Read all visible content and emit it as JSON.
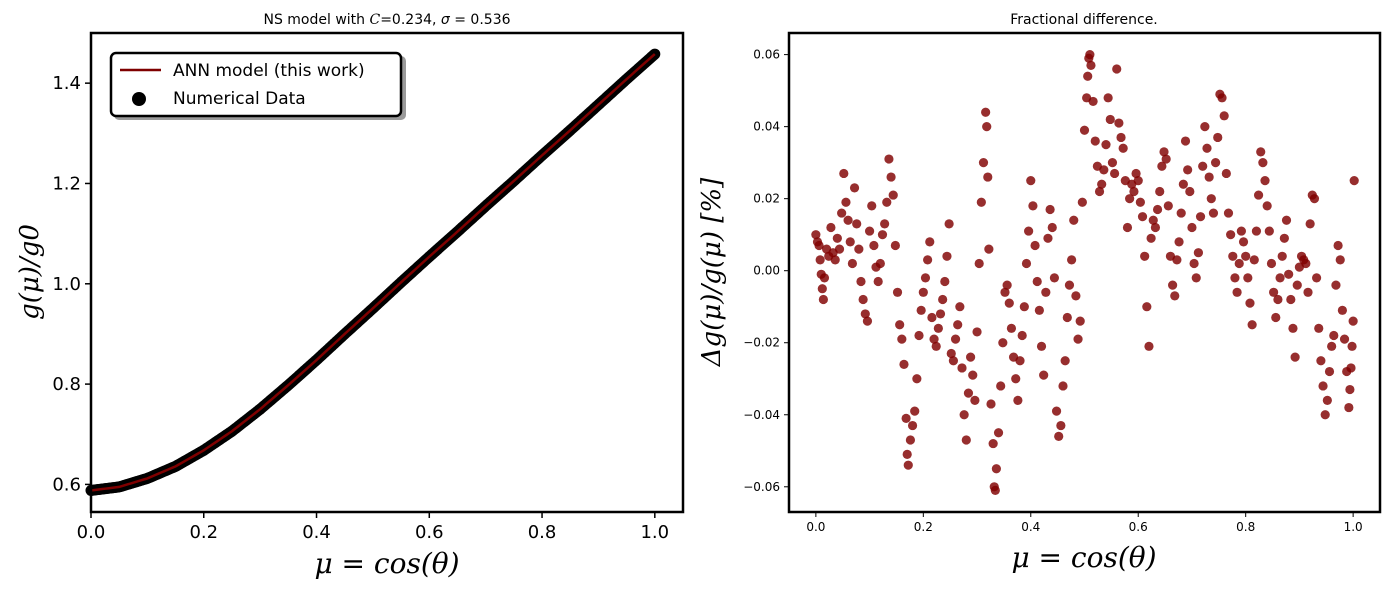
{
  "figure": {
    "background": "#ffffff"
  },
  "chart_data": [
    {
      "type": "line",
      "title": "NS model with C=0.234, σ = 0.536",
      "title_parts": {
        "prefix": "NS model with ",
        "c_symbol": "C",
        "c_value": "=0.234, ",
        "sigma_symbol": "σ",
        "sigma_value": " = 0.536"
      },
      "xlabel": "μ = cos(θ)",
      "ylabel": "g(μ)/g0",
      "xlim": [
        0.0,
        1.05
      ],
      "ylim": [
        0.545,
        1.5
      ],
      "xticks": [
        0.0,
        0.2,
        0.4,
        0.6,
        0.8,
        1.0
      ],
      "xtick_labels": [
        "0.0",
        "0.2",
        "0.4",
        "0.6",
        "0.8",
        "1.0"
      ],
      "yticks": [
        0.6,
        0.8,
        1.0,
        1.2,
        1.4
      ],
      "ytick_labels": [
        "0.6",
        "0.8",
        "1.0",
        "1.2",
        "1.4"
      ],
      "grid": false,
      "legend_position": "top-left",
      "series": [
        {
          "name": "ANN model (this work)",
          "kind": "line",
          "color": "#7f0000"
        },
        {
          "name": "Numerical Data",
          "kind": "scatter",
          "color": "#000000"
        }
      ],
      "curve": {
        "x": [
          0.0,
          0.05,
          0.1,
          0.15,
          0.2,
          0.25,
          0.3,
          0.35,
          0.4,
          0.45,
          0.5,
          0.55,
          0.6,
          0.65,
          0.7,
          0.75,
          0.8,
          0.85,
          0.9,
          0.95,
          1.0
        ],
        "y": [
          0.588,
          0.595,
          0.612,
          0.636,
          0.668,
          0.706,
          0.75,
          0.798,
          0.848,
          0.9,
          0.951,
          1.003,
          1.054,
          1.104,
          1.155,
          1.205,
          1.256,
          1.306,
          1.357,
          1.408,
          1.458
        ]
      }
    },
    {
      "type": "scatter",
      "title": "Fractional difference.",
      "xlabel": "μ = cos(θ)",
      "ylabel": "Δg(μ)/g(μ) [%]",
      "xlim": [
        -0.05,
        1.05
      ],
      "ylim": [
        -0.067,
        0.066
      ],
      "xticks": [
        0.0,
        0.2,
        0.4,
        0.6,
        0.8,
        1.0
      ],
      "xtick_labels": [
        "0.0",
        "0.2",
        "0.4",
        "0.6",
        "0.8",
        "1.0"
      ],
      "yticks": [
        -0.06,
        -0.04,
        -0.02,
        0.0,
        0.02,
        0.04,
        0.06
      ],
      "ytick_labels": [
        "−0.06",
        "−0.04",
        "−0.02",
        "0.00",
        "0.02",
        "0.04",
        "0.06"
      ],
      "grid": false,
      "color": "#800000",
      "points": [
        [
          0.0,
          0.01
        ],
        [
          0.003,
          0.008
        ],
        [
          0.006,
          0.007
        ],
        [
          0.008,
          0.003
        ],
        [
          0.01,
          -0.001
        ],
        [
          0.012,
          -0.005
        ],
        [
          0.014,
          -0.008
        ],
        [
          0.016,
          -0.002
        ],
        [
          0.02,
          0.006
        ],
        [
          0.024,
          0.004
        ],
        [
          0.028,
          0.012
        ],
        [
          0.032,
          0.005
        ],
        [
          0.036,
          0.003
        ],
        [
          0.04,
          0.009
        ],
        [
          0.044,
          0.006
        ],
        [
          0.048,
          0.016
        ],
        [
          0.052,
          0.027
        ],
        [
          0.056,
          0.019
        ],
        [
          0.06,
          0.014
        ],
        [
          0.064,
          0.008
        ],
        [
          0.068,
          0.002
        ],
        [
          0.072,
          0.023
        ],
        [
          0.076,
          0.013
        ],
        [
          0.08,
          0.006
        ],
        [
          0.084,
          -0.003
        ],
        [
          0.088,
          -0.008
        ],
        [
          0.092,
          -0.012
        ],
        [
          0.096,
          -0.014
        ],
        [
          0.1,
          0.011
        ],
        [
          0.104,
          0.018
        ],
        [
          0.108,
          0.007
        ],
        [
          0.112,
          0.001
        ],
        [
          0.116,
          -0.003
        ],
        [
          0.12,
          0.002
        ],
        [
          0.124,
          0.01
        ],
        [
          0.128,
          0.013
        ],
        [
          0.132,
          0.019
        ],
        [
          0.136,
          0.031
        ],
        [
          0.14,
          0.026
        ],
        [
          0.144,
          0.021
        ],
        [
          0.148,
          0.007
        ],
        [
          0.152,
          -0.006
        ],
        [
          0.156,
          -0.015
        ],
        [
          0.16,
          -0.019
        ],
        [
          0.164,
          -0.026
        ],
        [
          0.168,
          -0.041
        ],
        [
          0.17,
          -0.051
        ],
        [
          0.172,
          -0.054
        ],
        [
          0.176,
          -0.047
        ],
        [
          0.18,
          -0.043
        ],
        [
          0.184,
          -0.039
        ],
        [
          0.188,
          -0.03
        ],
        [
          0.192,
          -0.018
        ],
        [
          0.196,
          -0.011
        ],
        [
          0.2,
          -0.006
        ],
        [
          0.204,
          -0.002
        ],
        [
          0.208,
          0.003
        ],
        [
          0.212,
          0.008
        ],
        [
          0.216,
          -0.013
        ],
        [
          0.22,
          -0.019
        ],
        [
          0.224,
          -0.021
        ],
        [
          0.228,
          -0.016
        ],
        [
          0.232,
          -0.012
        ],
        [
          0.236,
          -0.008
        ],
        [
          0.24,
          -0.003
        ],
        [
          0.244,
          0.004
        ],
        [
          0.248,
          0.013
        ],
        [
          0.252,
          -0.023
        ],
        [
          0.256,
          -0.025
        ],
        [
          0.26,
          -0.019
        ],
        [
          0.264,
          -0.015
        ],
        [
          0.268,
          -0.01
        ],
        [
          0.272,
          -0.027
        ],
        [
          0.276,
          -0.04
        ],
        [
          0.28,
          -0.047
        ],
        [
          0.284,
          -0.034
        ],
        [
          0.288,
          -0.024
        ],
        [
          0.292,
          -0.029
        ],
        [
          0.296,
          -0.036
        ],
        [
          0.3,
          -0.017
        ],
        [
          0.304,
          0.002
        ],
        [
          0.308,
          0.019
        ],
        [
          0.312,
          0.03
        ],
        [
          0.316,
          0.044
        ],
        [
          0.318,
          0.04
        ],
        [
          0.32,
          0.026
        ],
        [
          0.322,
          0.006
        ],
        [
          0.326,
          -0.037
        ],
        [
          0.33,
          -0.048
        ],
        [
          0.332,
          -0.06
        ],
        [
          0.334,
          -0.061
        ],
        [
          0.336,
          -0.055
        ],
        [
          0.34,
          -0.045
        ],
        [
          0.344,
          -0.032
        ],
        [
          0.348,
          -0.02
        ],
        [
          0.352,
          -0.006
        ],
        [
          0.356,
          -0.004
        ],
        [
          0.36,
          -0.009
        ],
        [
          0.364,
          -0.016
        ],
        [
          0.368,
          -0.024
        ],
        [
          0.372,
          -0.03
        ],
        [
          0.376,
          -0.036
        ],
        [
          0.38,
          -0.025
        ],
        [
          0.384,
          -0.018
        ],
        [
          0.388,
          -0.01
        ],
        [
          0.392,
          0.002
        ],
        [
          0.396,
          0.011
        ],
        [
          0.4,
          0.025
        ],
        [
          0.404,
          0.018
        ],
        [
          0.408,
          0.007
        ],
        [
          0.412,
          -0.003
        ],
        [
          0.416,
          -0.011
        ],
        [
          0.42,
          -0.021
        ],
        [
          0.424,
          -0.029
        ],
        [
          0.428,
          -0.006
        ],
        [
          0.432,
          0.009
        ],
        [
          0.436,
          0.017
        ],
        [
          0.44,
          0.012
        ],
        [
          0.444,
          -0.002
        ],
        [
          0.448,
          -0.039
        ],
        [
          0.452,
          -0.046
        ],
        [
          0.456,
          -0.043
        ],
        [
          0.46,
          -0.032
        ],
        [
          0.464,
          -0.025
        ],
        [
          0.468,
          -0.013
        ],
        [
          0.472,
          -0.004
        ],
        [
          0.476,
          0.003
        ],
        [
          0.48,
          0.014
        ],
        [
          0.484,
          -0.007
        ],
        [
          0.488,
          -0.019
        ],
        [
          0.492,
          -0.014
        ],
        [
          0.496,
          0.019
        ],
        [
          0.5,
          0.039
        ],
        [
          0.504,
          0.048
        ],
        [
          0.506,
          0.054
        ],
        [
          0.508,
          0.059
        ],
        [
          0.51,
          0.06
        ],
        [
          0.512,
          0.057
        ],
        [
          0.516,
          0.047
        ],
        [
          0.52,
          0.036
        ],
        [
          0.524,
          0.029
        ],
        [
          0.528,
          0.022
        ],
        [
          0.532,
          0.024
        ],
        [
          0.536,
          0.028
        ],
        [
          0.54,
          0.035
        ],
        [
          0.544,
          0.048
        ],
        [
          0.548,
          0.042
        ],
        [
          0.552,
          0.03
        ],
        [
          0.556,
          0.027
        ],
        [
          0.56,
          0.056
        ],
        [
          0.564,
          0.041
        ],
        [
          0.568,
          0.037
        ],
        [
          0.572,
          0.034
        ],
        [
          0.576,
          0.025
        ],
        [
          0.58,
          0.012
        ],
        [
          0.584,
          0.02
        ],
        [
          0.588,
          0.024
        ],
        [
          0.592,
          0.022
        ],
        [
          0.596,
          0.027
        ],
        [
          0.6,
          0.025
        ],
        [
          0.604,
          0.019
        ],
        [
          0.608,
          0.015
        ],
        [
          0.612,
          0.004
        ],
        [
          0.616,
          -0.01
        ],
        [
          0.62,
          -0.021
        ],
        [
          0.624,
          0.009
        ],
        [
          0.628,
          0.014
        ],
        [
          0.632,
          0.012
        ],
        [
          0.636,
          0.017
        ],
        [
          0.64,
          0.022
        ],
        [
          0.644,
          0.029
        ],
        [
          0.648,
          0.033
        ],
        [
          0.652,
          0.031
        ],
        [
          0.656,
          0.018
        ],
        [
          0.66,
          0.004
        ],
        [
          0.664,
          -0.004
        ],
        [
          0.668,
          -0.007
        ],
        [
          0.672,
          0.003
        ],
        [
          0.676,
          0.008
        ],
        [
          0.68,
          0.016
        ],
        [
          0.684,
          0.024
        ],
        [
          0.688,
          0.036
        ],
        [
          0.692,
          0.028
        ],
        [
          0.696,
          0.022
        ],
        [
          0.7,
          0.012
        ],
        [
          0.704,
          0.002
        ],
        [
          0.708,
          -0.002
        ],
        [
          0.712,
          0.005
        ],
        [
          0.716,
          0.015
        ],
        [
          0.72,
          0.029
        ],
        [
          0.724,
          0.04
        ],
        [
          0.728,
          0.034
        ],
        [
          0.732,
          0.026
        ],
        [
          0.736,
          0.02
        ],
        [
          0.74,
          0.016
        ],
        [
          0.744,
          0.03
        ],
        [
          0.748,
          0.037
        ],
        [
          0.752,
          0.049
        ],
        [
          0.756,
          0.048
        ],
        [
          0.76,
          0.043
        ],
        [
          0.764,
          0.027
        ],
        [
          0.768,
          0.016
        ],
        [
          0.772,
          0.01
        ],
        [
          0.776,
          0.004
        ],
        [
          0.78,
          -0.002
        ],
        [
          0.784,
          -0.006
        ],
        [
          0.788,
          0.002
        ],
        [
          0.792,
          0.011
        ],
        [
          0.796,
          0.008
        ],
        [
          0.8,
          0.004
        ],
        [
          0.804,
          -0.002
        ],
        [
          0.808,
          -0.009
        ],
        [
          0.812,
          -0.015
        ],
        [
          0.816,
          0.003
        ],
        [
          0.82,
          0.011
        ],
        [
          0.824,
          0.021
        ],
        [
          0.828,
          0.033
        ],
        [
          0.832,
          0.03
        ],
        [
          0.836,
          0.025
        ],
        [
          0.84,
          0.018
        ],
        [
          0.844,
          0.011
        ],
        [
          0.848,
          0.002
        ],
        [
          0.852,
          -0.006
        ],
        [
          0.856,
          -0.013
        ],
        [
          0.86,
          -0.008
        ],
        [
          0.864,
          -0.002
        ],
        [
          0.868,
          0.004
        ],
        [
          0.872,
          0.009
        ],
        [
          0.876,
          0.014
        ],
        [
          0.88,
          -0.001
        ],
        [
          0.884,
          -0.008
        ],
        [
          0.888,
          -0.016
        ],
        [
          0.892,
          -0.024
        ],
        [
          0.896,
          -0.004
        ],
        [
          0.9,
          0.001
        ],
        [
          0.904,
          0.004
        ],
        [
          0.908,
          0.003
        ],
        [
          0.912,
          0.002
        ],
        [
          0.916,
          -0.006
        ],
        [
          0.92,
          0.013
        ],
        [
          0.924,
          0.021
        ],
        [
          0.928,
          0.02
        ],
        [
          0.932,
          -0.002
        ],
        [
          0.936,
          -0.016
        ],
        [
          0.94,
          -0.025
        ],
        [
          0.944,
          -0.032
        ],
        [
          0.948,
          -0.04
        ],
        [
          0.952,
          -0.036
        ],
        [
          0.956,
          -0.028
        ],
        [
          0.96,
          -0.021
        ],
        [
          0.964,
          -0.018
        ],
        [
          0.968,
          -0.004
        ],
        [
          0.972,
          0.007
        ],
        [
          0.976,
          0.003
        ],
        [
          0.98,
          -0.011
        ],
        [
          0.984,
          -0.019
        ],
        [
          0.988,
          -0.028
        ],
        [
          0.992,
          -0.038
        ],
        [
          0.994,
          -0.033
        ],
        [
          0.996,
          -0.027
        ],
        [
          0.998,
          -0.021
        ],
        [
          1.0,
          -0.014
        ],
        [
          1.002,
          0.025
        ]
      ]
    }
  ]
}
